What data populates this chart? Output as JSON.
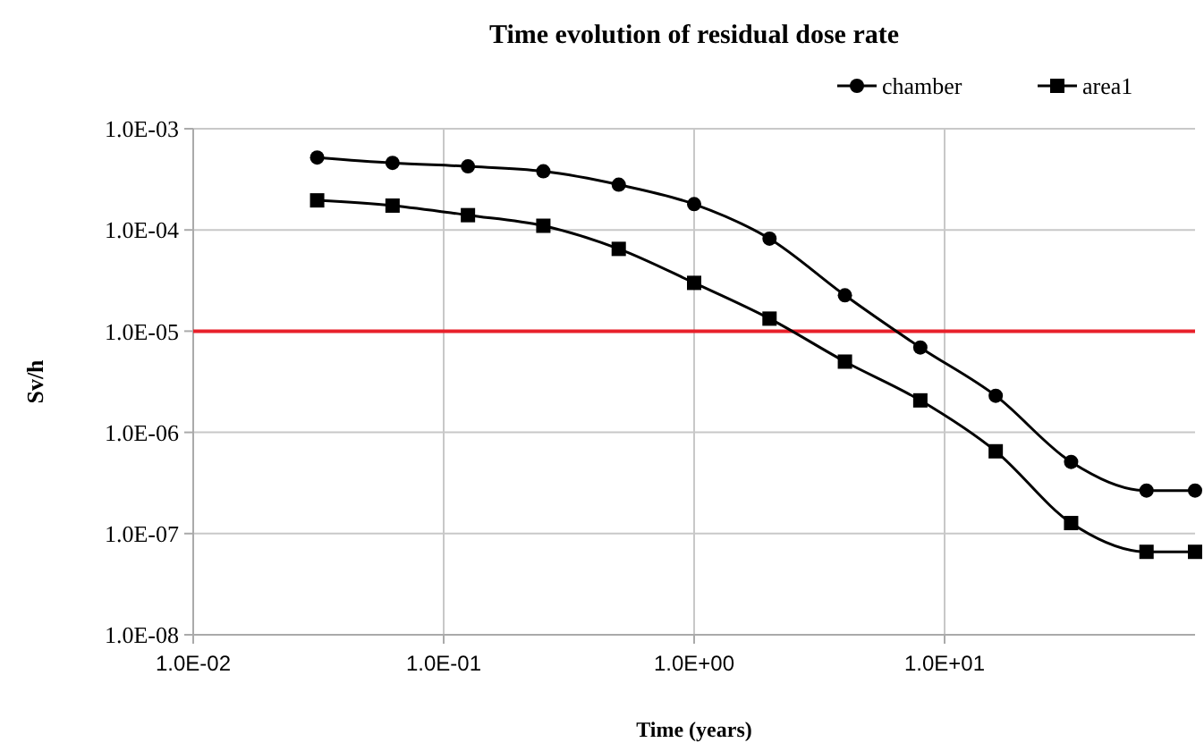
{
  "chart_data": {
    "type": "line",
    "title": "Time evolution of residual dose rate",
    "xlabel": "Time (years)",
    "ylabel": "Sv/h",
    "log": "xy",
    "grid": true,
    "legend": "top right",
    "line_style": "solid",
    "x": [
      0.03125,
      0.0625,
      0.125,
      0.25,
      0.5,
      1,
      2,
      4,
      8,
      16,
      32,
      64,
      100
    ],
    "xlim": [
      0.01,
      100
    ],
    "xticks": [
      {
        "value": 0.01,
        "label": "1.0E-02"
      },
      {
        "value": 0.1,
        "label": "1.0E-01"
      },
      {
        "value": 1,
        "label": "1.0E+00"
      },
      {
        "value": 10,
        "label": "1.0E+01"
      }
    ],
    "ylim": [
      1e-08,
      0.001
    ],
    "yticks": [
      {
        "value": 1e-08,
        "label": "1.0E-08"
      },
      {
        "value": 1e-07,
        "label": "1.0E-07"
      },
      {
        "value": 1e-06,
        "label": "1.0E-06"
      },
      {
        "value": 1e-05,
        "label": "1.0E-05"
      },
      {
        "value": 0.0001,
        "label": "1.0E-04"
      },
      {
        "value": 0.001,
        "label": "1.0E-03"
      }
    ],
    "series": [
      {
        "name": "chamber",
        "color": "#000000",
        "marker": "circle",
        "values": [
          0.00052,
          0.00046,
          0.000425,
          0.00038,
          0.00028,
          0.00018,
          8.2e-05,
          2.26e-05,
          6.9e-06,
          2.3e-06,
          5.1e-07,
          2.66e-07,
          2.66e-07
        ]
      },
      {
        "name": "area1",
        "color": "#000000",
        "marker": "square",
        "values": [
          0.000196,
          0.000174,
          0.00014,
          0.00011,
          6.5e-05,
          3e-05,
          1.33e-05,
          5e-06,
          2.07e-06,
          6.5e-07,
          1.27e-07,
          6.6e-08,
          6.6e-08
        ]
      }
    ],
    "ref_lines": [
      {
        "axis": "y",
        "value": 1e-05,
        "color": "#e8202a"
      }
    ]
  }
}
